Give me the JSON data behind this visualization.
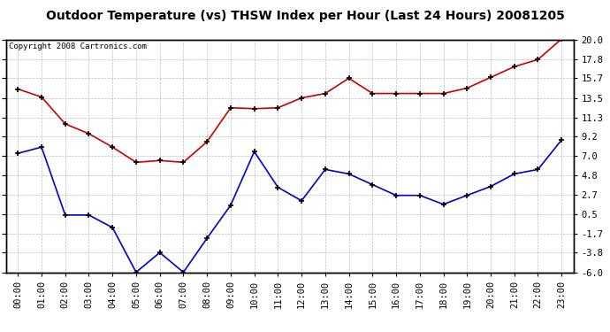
{
  "title": "Outdoor Temperature (vs) THSW Index per Hour (Last 24 Hours) 20081205",
  "copyright": "Copyright 2008 Cartronics.com",
  "hours": [
    "00:00",
    "01:00",
    "02:00",
    "03:00",
    "04:00",
    "05:00",
    "06:00",
    "07:00",
    "08:00",
    "09:00",
    "10:00",
    "11:00",
    "12:00",
    "13:00",
    "14:00",
    "15:00",
    "16:00",
    "17:00",
    "18:00",
    "19:00",
    "20:00",
    "21:00",
    "22:00",
    "23:00"
  ],
  "temp_red": [
    14.5,
    13.6,
    10.6,
    9.5,
    8.0,
    6.3,
    6.5,
    6.3,
    8.6,
    12.4,
    12.3,
    12.4,
    13.5,
    14.0,
    15.7,
    14.0,
    14.0,
    14.0,
    14.0,
    14.6,
    15.8,
    17.0,
    17.8,
    20.1
  ],
  "thsw_blue": [
    7.3,
    8.0,
    0.4,
    0.4,
    -1.0,
    -6.0,
    -3.8,
    -6.0,
    -2.2,
    1.5,
    7.5,
    3.5,
    2.0,
    5.5,
    5.0,
    3.8,
    2.6,
    2.6,
    1.6,
    2.6,
    3.6,
    5.0,
    5.5,
    8.8
  ],
  "ylim": [
    -6.0,
    20.0
  ],
  "yticks": [
    20.0,
    17.8,
    15.7,
    13.5,
    11.3,
    9.2,
    7.0,
    4.8,
    2.7,
    0.5,
    -1.7,
    -3.8,
    -6.0
  ],
  "red_color": "#cc0000",
  "blue_color": "#0000cc",
  "bg_color": "#ffffff",
  "grid_color": "#bbbbbb",
  "title_fontsize": 10,
  "copyright_fontsize": 6.5,
  "tick_fontsize": 7.5
}
